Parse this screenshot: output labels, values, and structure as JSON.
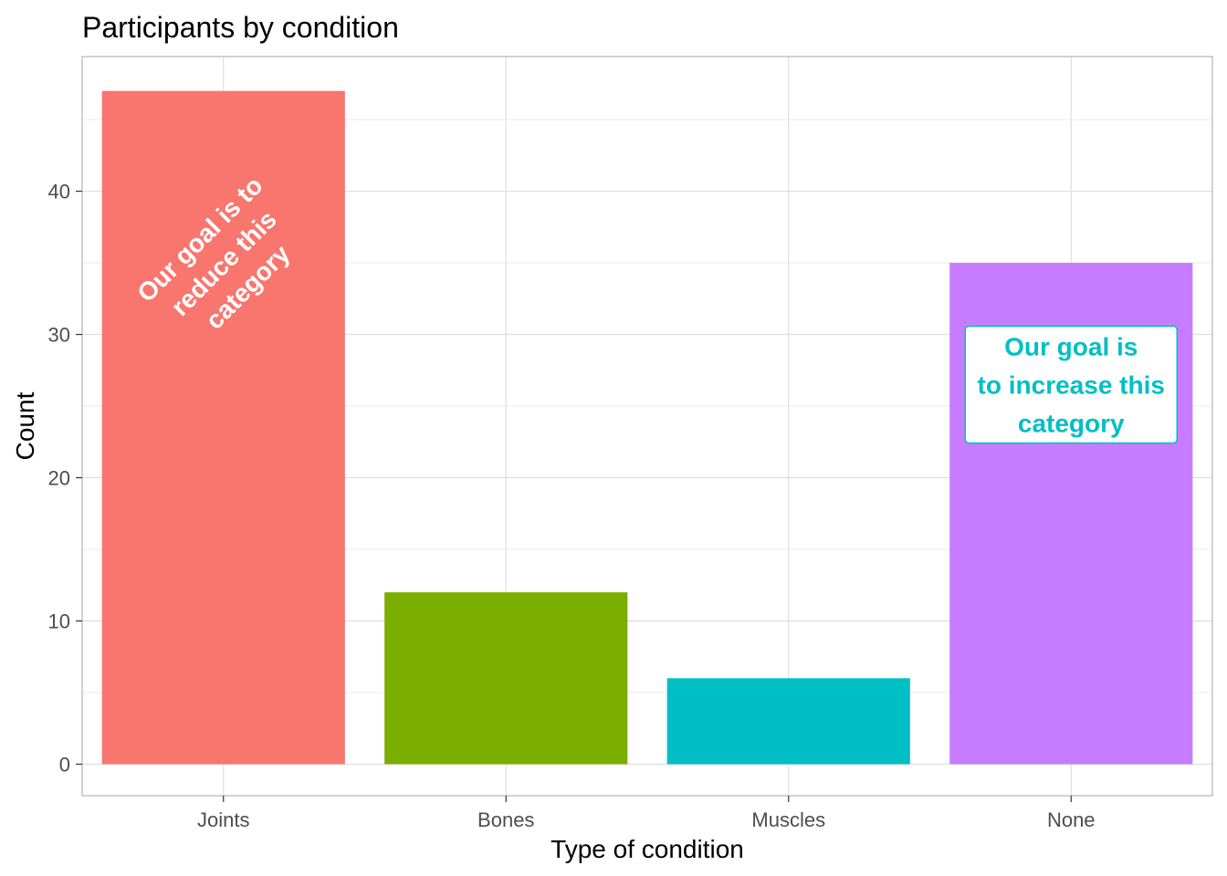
{
  "chart_data": {
    "type": "bar",
    "title": "Participants by condition",
    "xlabel": "Type of condition",
    "ylabel": "Count",
    "categories": [
      "Joints",
      "Bones",
      "Muscles",
      "None"
    ],
    "values": [
      47,
      12,
      6,
      35
    ],
    "colors": [
      "#F8766D",
      "#7CAE00",
      "#00BFC4",
      "#C77CFF"
    ],
    "ylim": [
      -2.2,
      49.4
    ],
    "yticks": [
      0,
      10,
      20,
      30,
      40
    ],
    "grid": true,
    "legend": "none",
    "annotations": [
      {
        "category": "Joints",
        "y": 35,
        "lines": [
          "Our goal is to",
          "reduce this",
          "category"
        ],
        "color": "#ffffff",
        "angle": -45,
        "boxed": false
      },
      {
        "category": "None",
        "y": 26.5,
        "lines": [
          "Our goal is",
          "to increase this",
          "category"
        ],
        "color": "#00BFC4",
        "fill": "#ffffff",
        "boxed": true
      }
    ]
  }
}
